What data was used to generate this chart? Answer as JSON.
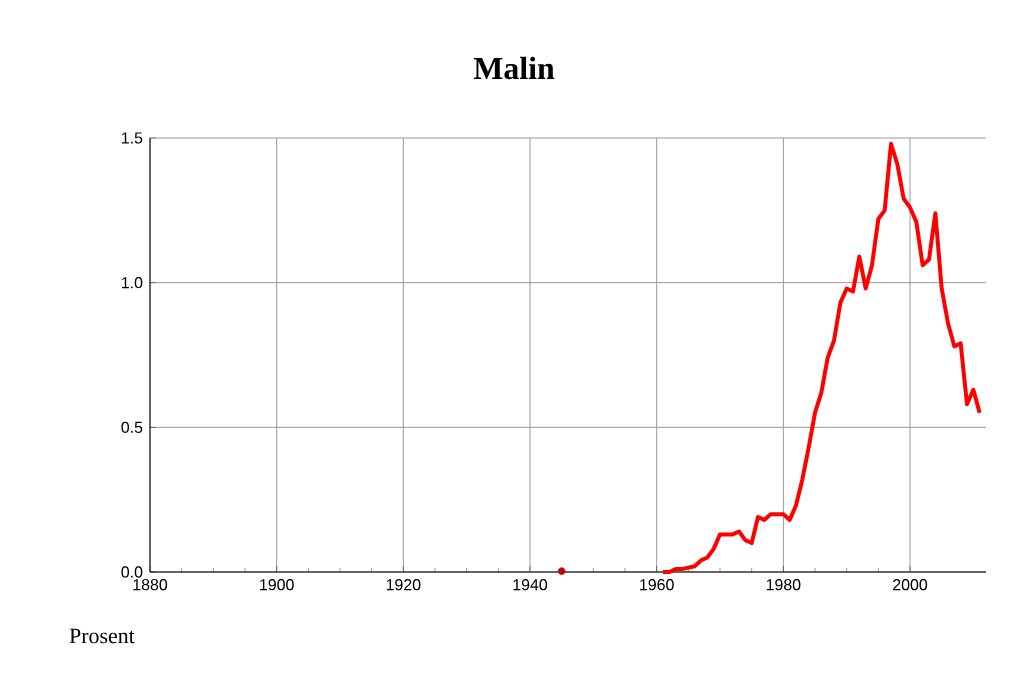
{
  "chart_data": {
    "type": "line",
    "title": "Malin",
    "ylabel": "Prosent",
    "series": [
      {
        "color": "#ff0000",
        "x": [
          1961,
          1962,
          1963,
          1964,
          1965,
          1966,
          1967,
          1968,
          1969,
          1970,
          1971,
          1972,
          1973,
          1974,
          1975,
          1976,
          1977,
          1978,
          1979,
          1980,
          1981,
          1982,
          1983,
          1984,
          1985,
          1986,
          1987,
          1988,
          1989,
          1990,
          1991,
          1992,
          1993,
          1994,
          1995,
          1996,
          1997,
          1998,
          1999,
          2000,
          2001,
          2002,
          2003,
          2004,
          2005,
          2006,
          2007,
          2008,
          2009,
          2010,
          2011
        ],
        "values": [
          0.0,
          0.0,
          0.01,
          0.01,
          0.015,
          0.02,
          0.04,
          0.05,
          0.08,
          0.13,
          0.13,
          0.13,
          0.14,
          0.11,
          0.1,
          0.19,
          0.18,
          0.2,
          0.2,
          0.2,
          0.18,
          0.23,
          0.32,
          0.43,
          0.55,
          0.62,
          0.74,
          0.8,
          0.93,
          0.98,
          0.97,
          1.09,
          0.98,
          1.06,
          1.22,
          1.25,
          1.48,
          1.41,
          1.29,
          1.26,
          1.21,
          1.06,
          1.08,
          1.24,
          0.98,
          0.86,
          0.78,
          0.79,
          0.58,
          0.63,
          0.55
        ]
      },
      {
        "type": "scatter",
        "color": "#cc0000",
        "x": [
          1945
        ],
        "values": [
          0.003
        ]
      }
    ],
    "xlim": [
      1880,
      2012
    ],
    "ylim": [
      0,
      1.5
    ],
    "xticks": [
      1880,
      1900,
      1920,
      1940,
      1960,
      1980,
      2000
    ],
    "yticks": [
      {
        "value": 0,
        "label": "0.0"
      },
      {
        "value": 0.5,
        "label": "0.5"
      },
      {
        "value": 1,
        "label": "1.0"
      },
      {
        "value": 1.5,
        "label": "1.5"
      }
    ],
    "grid": true
  }
}
